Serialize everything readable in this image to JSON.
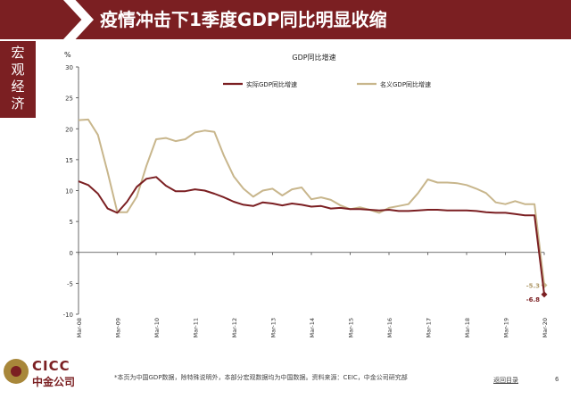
{
  "slide": {
    "title": "疫情冲击下1季度GDP同比明显收缩",
    "section_tab": "宏观经济",
    "footnote": "*本页为中国GDP数据，除特殊说明外，本部分宏观数据均为中国数据。资料来源：CEIC，中金公司研究部",
    "back_link": "返回目录",
    "page_number": "6",
    "logo_en": "CICC",
    "logo_cn": "中金公司",
    "colors": {
      "brand": "#7b1f22",
      "gold": "#a8873a",
      "real_series": "#7b1f22",
      "nominal_series": "#c8b68c"
    }
  },
  "chart_data": {
    "type": "line",
    "title": "GDP同比增速",
    "ylabel": "%",
    "xlabel": "",
    "ylim": [
      -10,
      30
    ],
    "yticks": [
      "30",
      "25",
      "20",
      "15",
      "10",
      "5",
      "0",
      "-5",
      "-10"
    ],
    "grid": false,
    "legend_placement": "top",
    "x_tick_labels": [
      "Mar-08",
      "Mar-09",
      "Mar-10",
      "Mar-11",
      "Mar-12",
      "Mar-13",
      "Mar-14",
      "Mar-15",
      "Mar-16",
      "Mar-17",
      "Mar-18",
      "Mar-19",
      "Mar-20"
    ],
    "x": [
      "Mar-08",
      "Jun-08",
      "Sep-08",
      "Dec-08",
      "Mar-09",
      "Jun-09",
      "Sep-09",
      "Dec-09",
      "Mar-10",
      "Jun-10",
      "Sep-10",
      "Dec-10",
      "Mar-11",
      "Jun-11",
      "Sep-11",
      "Dec-11",
      "Mar-12",
      "Jun-12",
      "Sep-12",
      "Dec-12",
      "Mar-13",
      "Jun-13",
      "Sep-13",
      "Dec-13",
      "Mar-14",
      "Jun-14",
      "Sep-14",
      "Dec-14",
      "Mar-15",
      "Jun-15",
      "Sep-15",
      "Dec-15",
      "Mar-16",
      "Jun-16",
      "Sep-16",
      "Dec-16",
      "Mar-17",
      "Jun-17",
      "Sep-17",
      "Dec-17",
      "Mar-18",
      "Jun-18",
      "Sep-18",
      "Dec-18",
      "Mar-19",
      "Jun-19",
      "Sep-19",
      "Dec-19",
      "Mar-20"
    ],
    "series": [
      {
        "name": "实际GDP同比增速",
        "values": [
          11.5,
          10.9,
          9.5,
          7.1,
          6.4,
          8.2,
          10.6,
          11.9,
          12.2,
          10.8,
          9.9,
          9.9,
          10.2,
          10.0,
          9.5,
          8.9,
          8.2,
          7.7,
          7.5,
          8.1,
          7.9,
          7.6,
          7.9,
          7.7,
          7.4,
          7.5,
          7.1,
          7.2,
          7.0,
          7.0,
          6.9,
          6.8,
          6.9,
          6.7,
          6.7,
          6.8,
          6.9,
          6.9,
          6.8,
          6.8,
          6.8,
          6.7,
          6.5,
          6.4,
          6.4,
          6.2,
          6.0,
          6.0,
          -6.8
        ],
        "end_label": "-6.8"
      },
      {
        "name": "名义GDP同比增速",
        "values": [
          21.4,
          21.5,
          19.0,
          13.0,
          6.5,
          6.5,
          9.0,
          14.0,
          18.3,
          18.5,
          18.0,
          18.3,
          19.4,
          19.7,
          19.5,
          15.6,
          12.3,
          10.3,
          9.0,
          10.0,
          10.3,
          9.2,
          10.2,
          10.5,
          8.6,
          8.9,
          8.5,
          7.6,
          7.0,
          7.3,
          6.9,
          6.4,
          7.2,
          7.5,
          7.8,
          9.6,
          11.8,
          11.3,
          11.3,
          11.2,
          10.9,
          10.3,
          9.6,
          8.1,
          7.8,
          8.3,
          7.8,
          7.8,
          -5.3
        ],
        "end_label": "-5.3"
      }
    ]
  }
}
